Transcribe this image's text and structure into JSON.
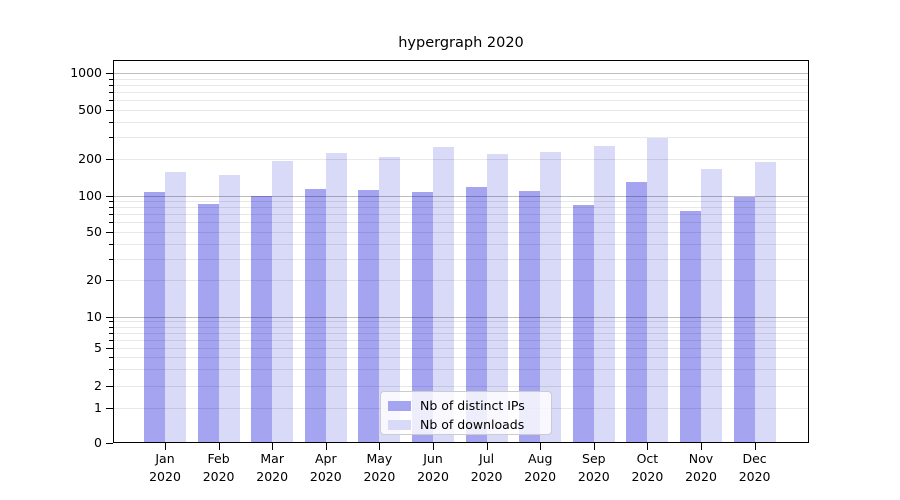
{
  "title": "hypergraph 2020",
  "legend": {
    "items": [
      {
        "label": "Nb of distinct IPs"
      },
      {
        "label": "Nb of downloads"
      }
    ]
  },
  "y_axis": {
    "tick_labels": [
      "1000",
      "500",
      "200",
      "100",
      "50",
      "20",
      "10",
      "5",
      "2",
      "1",
      "0"
    ]
  },
  "x_axis": {
    "months": [
      "Jan",
      "Feb",
      "Mar",
      "Apr",
      "May",
      "Jun",
      "Jul",
      "Aug",
      "Sep",
      "Oct",
      "Nov",
      "Dec"
    ],
    "year": "2020"
  },
  "chart_data": {
    "type": "bar",
    "title": "hypergraph 2020",
    "categories": [
      "Jan 2020",
      "Feb 2020",
      "Mar 2020",
      "Apr 2020",
      "May 2020",
      "Jun 2020",
      "Jul 2020",
      "Aug 2020",
      "Sep 2020",
      "Oct 2020",
      "Nov 2020",
      "Dec 2020"
    ],
    "series": [
      {
        "name": "Nb of distinct IPs",
        "color": "#a4a4f1",
        "values": [
          107,
          85,
          100,
          113,
          111,
          107,
          117,
          109,
          84,
          130,
          75,
          98
        ]
      },
      {
        "name": "Nb of downloads",
        "color": "#d9d9f8",
        "values": [
          157,
          146,
          192,
          221,
          208,
          247,
          218,
          226,
          252,
          296,
          164,
          188
        ]
      }
    ],
    "yscale": "symlog",
    "y_ticks": [
      0,
      1,
      2,
      5,
      10,
      20,
      50,
      100,
      200,
      500,
      1000
    ],
    "ylim": [
      0,
      1300
    ],
    "grid": true,
    "legend_position": "lower center"
  }
}
